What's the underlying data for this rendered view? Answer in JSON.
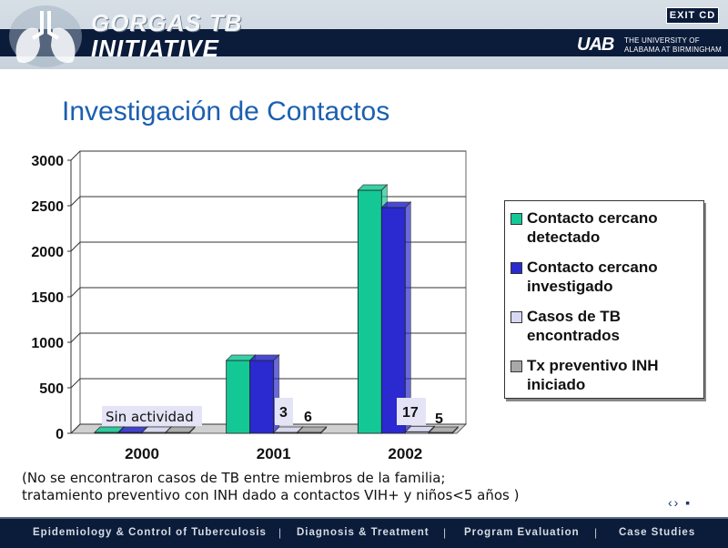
{
  "header": {
    "brand_line1": "GORGAS TB",
    "brand_line2": "INITIATIVE",
    "exit_label": "EXIT CD",
    "uab_mark": "UAB",
    "uab_name_line1": "THE UNIVERSITY OF",
    "uab_name_line2": "ALABAMA AT BIRMINGHAM"
  },
  "slide_title": "Investigación de Contactos",
  "chart_data": {
    "type": "bar",
    "title": "Investigación de Contactos",
    "categories": [
      "2000",
      "2001",
      "2002"
    ],
    "ylim": [
      0,
      3000
    ],
    "yticks": [
      "0",
      "500",
      "1000",
      "1500",
      "2000",
      "2500",
      "3000"
    ],
    "series": [
      {
        "name": "Contacto cercano detectado",
        "color": "#14c896",
        "values": [
          0,
          800,
          2670
        ]
      },
      {
        "name": "Contacto cercano investigado",
        "color": "#2a2ad0",
        "values": [
          0,
          800,
          2480
        ]
      },
      {
        "name": "Casos de TB encontrados",
        "color": "#d8d8f4",
        "values": [
          0,
          3,
          17
        ]
      },
      {
        "name": "Tx preventivo INH iniciado",
        "color": "#a8a8a8",
        "values": [
          0,
          6,
          5
        ]
      }
    ],
    "annotations": {
      "no_activity": "Sin actividad",
      "cases_2001": "3",
      "inh_2001": "6",
      "cases_2002": "17",
      "inh_2002": "5"
    }
  },
  "legend": {
    "items": [
      {
        "label": "Contacto cercano detectado",
        "color": "#14c896"
      },
      {
        "label": "Contacto cercano investigado",
        "color": "#2a2ad0"
      },
      {
        "label": "Casos de TB encontrados",
        "color": "#d8d8f4"
      },
      {
        "label": "Tx preventivo INH iniciado",
        "color": "#a8a8a8"
      }
    ]
  },
  "note": {
    "line1": "(No se encontraron casos de TB entre miembros de la familia;",
    "line2": "tratamiento preventivo con INH  dado a contactos VIH+ y niños<5 años )"
  },
  "nav_arrows": "‹› ▪",
  "footer": {
    "items": [
      "Epidemiology & Control of Tuberculosis",
      "Diagnosis & Treatment",
      "Program Evaluation",
      "Case Studies"
    ],
    "separator": "|"
  }
}
